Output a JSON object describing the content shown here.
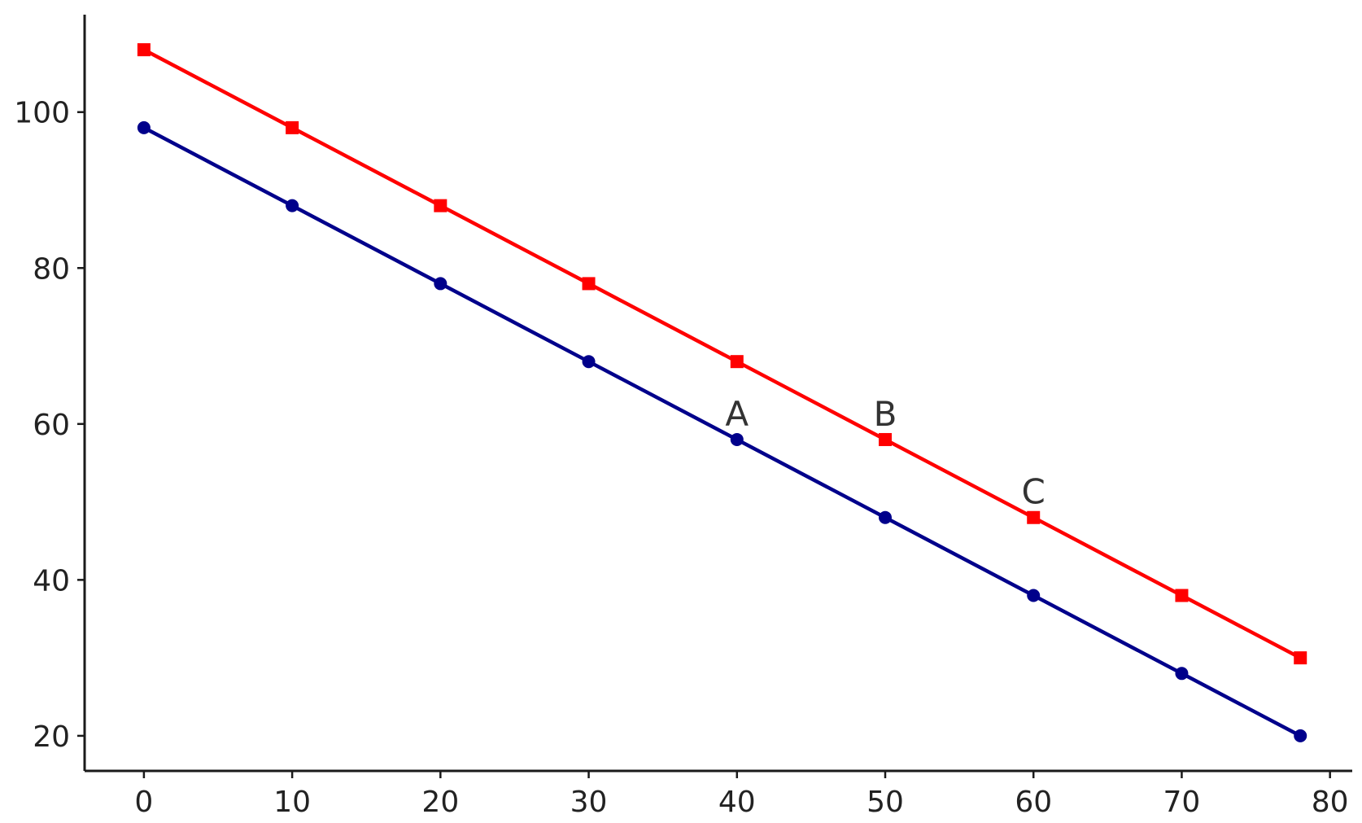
{
  "chart_data": {
    "type": "line",
    "title": "",
    "xlabel": "",
    "ylabel": "",
    "xlim": [
      -4,
      81.5
    ],
    "ylim": [
      15.5,
      112.5
    ],
    "x_ticks": [
      0,
      10,
      20,
      30,
      40,
      50,
      60,
      70,
      80
    ],
    "y_ticks": [
      20,
      40,
      60,
      80,
      100
    ],
    "x_tick_labels": [
      "0",
      "10",
      "20",
      "30",
      "40",
      "50",
      "60",
      "70",
      "80"
    ],
    "y_tick_labels": [
      "20",
      "40",
      "60",
      "80",
      "100"
    ],
    "grid": false,
    "series": [
      {
        "color": "#ff0000",
        "marker": "square",
        "x": [
          0,
          10,
          20,
          30,
          40,
          50,
          60,
          70,
          78
        ],
        "y": [
          108,
          98,
          88,
          78,
          68,
          58,
          48,
          38,
          30
        ]
      },
      {
        "color": "#00008b",
        "marker": "circle",
        "x": [
          0,
          10,
          20,
          30,
          40,
          50,
          60,
          70,
          78
        ],
        "y": [
          98,
          88,
          78,
          68,
          58,
          48,
          38,
          28,
          20
        ]
      }
    ],
    "annotations": [
      {
        "text": "A",
        "x": 40,
        "y": 58
      },
      {
        "text": "B",
        "x": 50,
        "y": 58
      },
      {
        "text": "C",
        "x": 60,
        "y": 48
      }
    ]
  }
}
